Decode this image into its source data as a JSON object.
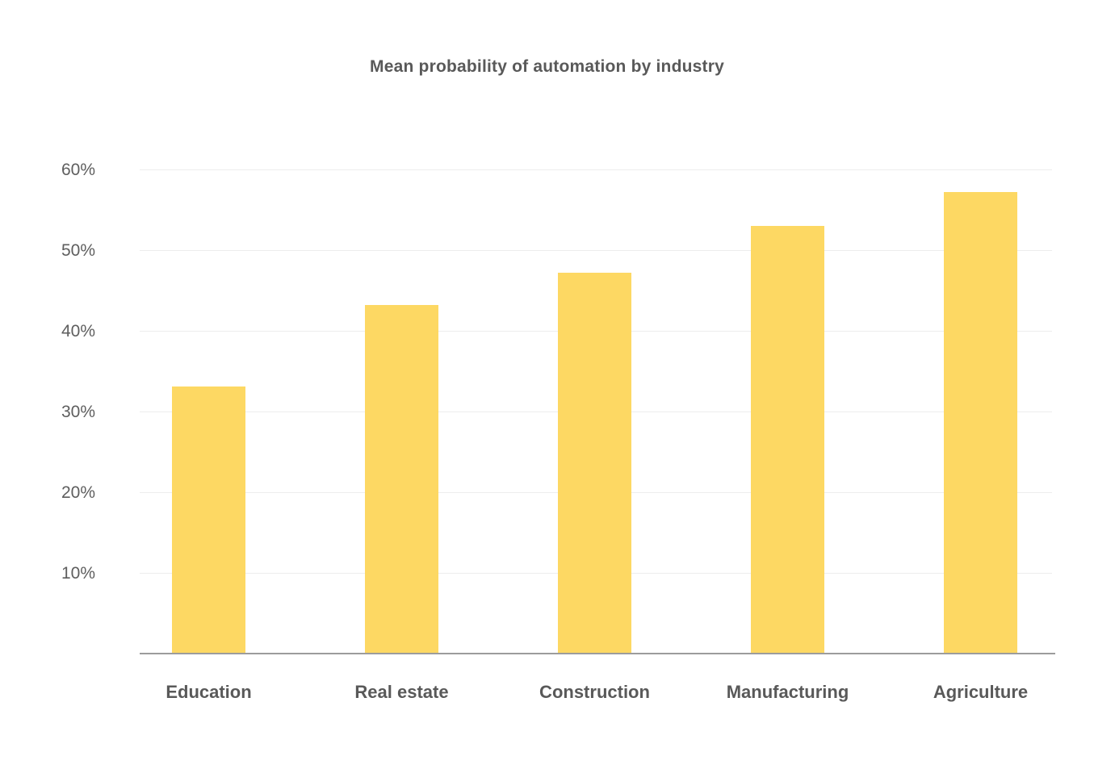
{
  "chart_data": {
    "type": "bar",
    "title": "Mean probability of automation by industry",
    "categories": [
      "Education",
      "Real estate",
      "Construction",
      "Manufacturing",
      "Agriculture"
    ],
    "values": [
      33.1,
      43.2,
      47.2,
      53.0,
      57.2
    ],
    "unit": "%",
    "y_ticks": [
      {
        "value": 10,
        "label": "10%"
      },
      {
        "value": 20,
        "label": "20%"
      },
      {
        "value": 30,
        "label": "30%"
      },
      {
        "value": 40,
        "label": "40%"
      },
      {
        "value": 50,
        "label": "50%"
      },
      {
        "value": 60,
        "label": "60%"
      }
    ],
    "ylim": [
      0,
      60
    ],
    "xlabel": "",
    "ylabel": "",
    "grid": "horizontal",
    "legend": "none",
    "colors": {
      "bar": "#fdd863",
      "title_text": "#595959",
      "tick_text": "#5e5e5e",
      "category_text": "#595959",
      "gridline": "#ededed",
      "axis_line": "#9c9c9c",
      "background": "#ffffff"
    }
  }
}
